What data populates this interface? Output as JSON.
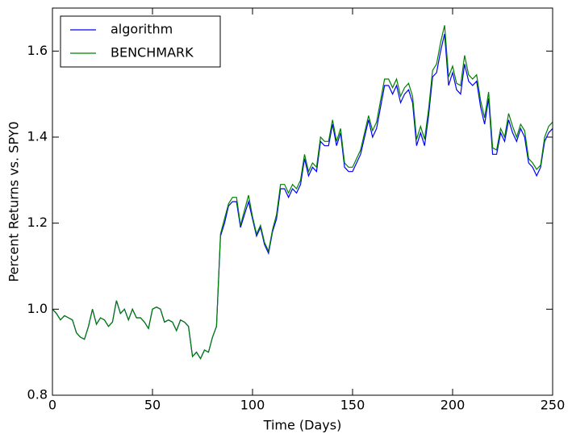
{
  "chart_data": {
    "type": "line",
    "xlabel": "Time (Days)",
    "ylabel": "Percent Returns vs. SPY0",
    "x": [
      0,
      2,
      4,
      6,
      8,
      10,
      12,
      14,
      16,
      18,
      20,
      22,
      24,
      26,
      28,
      30,
      32,
      34,
      36,
      38,
      40,
      42,
      44,
      46,
      48,
      50,
      52,
      54,
      56,
      58,
      60,
      62,
      64,
      66,
      68,
      70,
      72,
      74,
      76,
      78,
      80,
      82,
      84,
      86,
      88,
      90,
      92,
      94,
      96,
      98,
      100,
      102,
      104,
      106,
      108,
      110,
      112,
      114,
      116,
      118,
      120,
      122,
      124,
      126,
      128,
      130,
      132,
      134,
      136,
      138,
      140,
      142,
      144,
      146,
      148,
      150,
      152,
      154,
      156,
      158,
      160,
      162,
      164,
      166,
      168,
      170,
      172,
      174,
      176,
      178,
      180,
      182,
      184,
      186,
      188,
      190,
      192,
      194,
      196,
      198,
      200,
      202,
      204,
      206,
      208,
      210,
      212,
      214,
      216,
      218,
      220,
      222,
      224,
      226,
      228,
      230,
      232,
      234,
      236,
      238,
      240,
      242,
      244,
      246,
      248,
      250
    ],
    "series": [
      {
        "name": "algorithm",
        "color": "#0000ff",
        "values": [
          1.0,
          0.99,
          0.975,
          0.985,
          0.98,
          0.975,
          0.945,
          0.935,
          0.93,
          0.96,
          1.0,
          0.965,
          0.98,
          0.975,
          0.96,
          0.97,
          1.02,
          0.99,
          1.0,
          0.975,
          1.0,
          0.98,
          0.98,
          0.97,
          0.955,
          1.0,
          1.005,
          1.0,
          0.97,
          0.975,
          0.97,
          0.95,
          0.975,
          0.97,
          0.96,
          0.89,
          0.9,
          0.885,
          0.905,
          0.9,
          0.935,
          0.96,
          1.17,
          1.2,
          1.24,
          1.25,
          1.25,
          1.19,
          1.22,
          1.25,
          1.21,
          1.17,
          1.19,
          1.15,
          1.13,
          1.18,
          1.21,
          1.28,
          1.28,
          1.26,
          1.28,
          1.27,
          1.29,
          1.35,
          1.31,
          1.33,
          1.32,
          1.39,
          1.38,
          1.38,
          1.43,
          1.38,
          1.41,
          1.33,
          1.32,
          1.32,
          1.34,
          1.36,
          1.4,
          1.44,
          1.4,
          1.42,
          1.47,
          1.52,
          1.52,
          1.5,
          1.52,
          1.48,
          1.5,
          1.51,
          1.48,
          1.38,
          1.41,
          1.38,
          1.45,
          1.54,
          1.55,
          1.6,
          1.64,
          1.52,
          1.55,
          1.51,
          1.5,
          1.57,
          1.53,
          1.52,
          1.53,
          1.47,
          1.43,
          1.49,
          1.36,
          1.36,
          1.41,
          1.39,
          1.44,
          1.41,
          1.39,
          1.42,
          1.4,
          1.34,
          1.33,
          1.31,
          1.33,
          1.39,
          1.41,
          1.42
        ]
      },
      {
        "name": "BENCHMARK",
        "color": "#008000",
        "values": [
          1.0,
          0.99,
          0.975,
          0.985,
          0.98,
          0.975,
          0.945,
          0.935,
          0.93,
          0.96,
          1.0,
          0.965,
          0.98,
          0.975,
          0.96,
          0.97,
          1.02,
          0.99,
          1.0,
          0.975,
          1.0,
          0.98,
          0.98,
          0.97,
          0.955,
          1.0,
          1.005,
          1.0,
          0.97,
          0.975,
          0.97,
          0.95,
          0.975,
          0.97,
          0.96,
          0.89,
          0.9,
          0.885,
          0.905,
          0.9,
          0.935,
          0.96,
          1.175,
          1.21,
          1.245,
          1.26,
          1.26,
          1.195,
          1.23,
          1.265,
          1.215,
          1.175,
          1.195,
          1.155,
          1.135,
          1.185,
          1.22,
          1.29,
          1.29,
          1.27,
          1.29,
          1.28,
          1.3,
          1.36,
          1.32,
          1.34,
          1.33,
          1.4,
          1.39,
          1.39,
          1.44,
          1.39,
          1.42,
          1.34,
          1.33,
          1.33,
          1.35,
          1.37,
          1.41,
          1.45,
          1.415,
          1.435,
          1.485,
          1.535,
          1.535,
          1.515,
          1.535,
          1.495,
          1.515,
          1.525,
          1.495,
          1.395,
          1.425,
          1.395,
          1.465,
          1.555,
          1.57,
          1.62,
          1.66,
          1.54,
          1.565,
          1.525,
          1.52,
          1.59,
          1.545,
          1.535,
          1.545,
          1.485,
          1.445,
          1.505,
          1.375,
          1.37,
          1.42,
          1.4,
          1.455,
          1.425,
          1.4,
          1.43,
          1.415,
          1.35,
          1.34,
          1.325,
          1.335,
          1.4,
          1.425,
          1.435
        ]
      }
    ],
    "xlim": [
      0,
      250
    ],
    "xticks": [
      0,
      50,
      100,
      150,
      200,
      250
    ],
    "ylim": [
      0.8,
      1.7
    ],
    "yticks": [
      0.8,
      {
        "value": 1,
        "label": "1.0"
      },
      1.2,
      1.4,
      1.6
    ],
    "grid": false,
    "legend": "upper left"
  }
}
